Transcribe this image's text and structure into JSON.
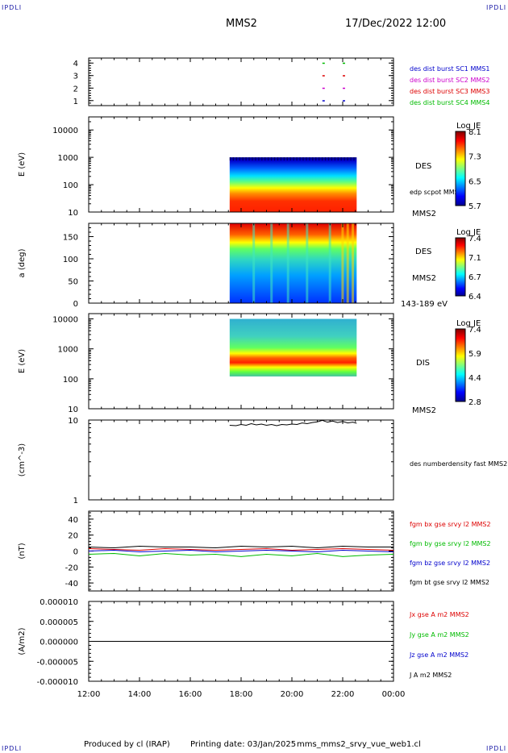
{
  "header": {
    "corner_tl": "IPDLI",
    "corner_tr": "IPDLI",
    "corner_bl": "IPDLI",
    "corner_br": "IPDLI",
    "spacecraft": "MMS2",
    "datetime": "17/Dec/2022 12:00"
  },
  "footer": {
    "producer": "Produced by cl (IRAP)",
    "print_date": "Printing date: 03/Jan/2025",
    "filename": "mms_mms2_srvy_vue_web1.cl"
  },
  "time_axis": {
    "ticks": [
      "12:00",
      "14:00",
      "16:00",
      "18:00",
      "20:00",
      "22:00",
      "00:00"
    ],
    "range_hours": [
      12,
      24
    ]
  },
  "colors": {
    "mms1": "#0000cc",
    "mms2": "#cc00cc",
    "mms3": "#dd0000",
    "mms4": "#00bb00",
    "bx": "#dd0000",
    "by": "#00bb00",
    "bz": "#0000cc",
    "bt": "#000000"
  },
  "chart_data": [
    {
      "type": "scatter",
      "panel": "burst",
      "ylim": [
        0.6,
        4.4
      ],
      "yticks": [
        "1",
        "2",
        "3",
        "4"
      ],
      "legend": [
        "des dist burst SC1 MMS1",
        "des dist burst SC2 MMS2",
        "des dist burst SC3 MMS3",
        "des dist burst SC4 MMS4"
      ],
      "series": [
        {
          "name": "des dist burst SC1 MMS1",
          "x": [
            21.2,
            22.0
          ],
          "y": [
            1,
            1
          ]
        },
        {
          "name": "des dist burst SC2 MMS2",
          "x": [
            21.2,
            22.0
          ],
          "y": [
            2,
            2
          ]
        },
        {
          "name": "des dist burst SC3 MMS3",
          "x": [
            21.2,
            22.0
          ],
          "y": [
            3,
            3
          ]
        },
        {
          "name": "des dist burst SC4 MMS4",
          "x": [
            21.2,
            22.0
          ],
          "y": [
            4,
            4
          ]
        }
      ]
    },
    {
      "type": "heatmap",
      "panel": "des-energy",
      "ylabel": "E (eV)",
      "yscale": "log",
      "ylim": [
        10,
        30000
      ],
      "yticks": [
        "10",
        "100",
        "1000",
        "10000"
      ],
      "x_extent": [
        17.55,
        22.55
      ],
      "y_extent": [
        10,
        1000
      ],
      "label": "DES",
      "label2": "edp scpot MMS2",
      "label3": "MMS2",
      "colorbar": {
        "title": "Log JE",
        "ticks": [
          "8.1",
          "7.3",
          "6.5",
          "5.7"
        ]
      }
    },
    {
      "type": "heatmap",
      "panel": "des-pitch",
      "ylabel": "a (deg)",
      "ylim": [
        0,
        180
      ],
      "yticks": [
        "0",
        "50",
        "100",
        "150"
      ],
      "x_extent": [
        17.55,
        22.55
      ],
      "y_extent": [
        0,
        180
      ],
      "label": "DES",
      "label2": "MMS2",
      "label3": "143-189 eV",
      "colorbar": {
        "title": "Log JE",
        "ticks": [
          "7.4",
          "7.1",
          "6.7",
          "6.4"
        ]
      }
    },
    {
      "type": "heatmap",
      "panel": "dis-energy",
      "ylabel": "E (eV)",
      "yscale": "log",
      "ylim": [
        10,
        15000
      ],
      "yticks": [
        "10",
        "100",
        "1000",
        "10000"
      ],
      "x_extent": [
        17.55,
        22.55
      ],
      "y_extent": [
        120,
        10000
      ],
      "label": "DIS",
      "label2": "MMS2",
      "colorbar": {
        "title": "Log JE",
        "ticks": [
          "7.4",
          "5.9",
          "4.4",
          "2.8"
        ]
      }
    },
    {
      "type": "line",
      "panel": "density",
      "ylabel": "(cm^-3)",
      "yscale": "log",
      "ylim": [
        1,
        10
      ],
      "yticks": [
        "1",
        "10"
      ],
      "legend": [
        "des numberdensity fast MMS2"
      ],
      "series": [
        {
          "name": "des numberdensity fast MMS2",
          "x": [
            17.55,
            17.8,
            18.0,
            18.2,
            18.4,
            18.6,
            18.8,
            19.0,
            19.2,
            19.4,
            19.6,
            19.8,
            20.0,
            20.2,
            20.4,
            20.6,
            20.8,
            21.0,
            21.2,
            21.4,
            21.6,
            21.8,
            22.0,
            22.2,
            22.4,
            22.55
          ],
          "y": [
            8.6,
            8.5,
            8.8,
            8.6,
            9.0,
            8.7,
            8.9,
            8.6,
            8.8,
            8.5,
            8.8,
            8.7,
            8.9,
            8.8,
            9.2,
            9.0,
            9.3,
            9.5,
            9.9,
            9.4,
            9.7,
            9.3,
            9.6,
            9.2,
            9.4,
            9.1
          ]
        }
      ]
    },
    {
      "type": "line",
      "panel": "magnetic",
      "ylabel": "(nT)",
      "ylim": [
        -50,
        50
      ],
      "yticks": [
        "-40",
        "-20",
        "0",
        "20",
        "40"
      ],
      "legend": [
        "fgm bx gse srvy l2 MMS2",
        "fgm by gse srvy l2 MMS2",
        "fgm bz gse srvy l2 MMS2",
        "fgm bt gse srvy l2 MMS2"
      ],
      "series": [
        {
          "name": "fgm bx gse srvy l2 MMS2",
          "x": [
            12,
            13,
            14,
            15,
            16,
            17,
            18,
            19,
            20,
            21,
            22,
            23,
            24
          ],
          "y": [
            3,
            2,
            1,
            3,
            2,
            1,
            2,
            3,
            1,
            2,
            3,
            2,
            1
          ]
        },
        {
          "name": "fgm by gse srvy l2 MMS2",
          "x": [
            12,
            13,
            14,
            15,
            16,
            17,
            18,
            19,
            20,
            21,
            22,
            23,
            24
          ],
          "y": [
            -4,
            -3,
            -6,
            -3,
            -5,
            -4,
            -7,
            -4,
            -6,
            -3,
            -7,
            -5,
            -4
          ]
        },
        {
          "name": "fgm bz gse srvy l2 MMS2",
          "x": [
            12,
            13,
            14,
            15,
            16,
            17,
            18,
            19,
            20,
            21,
            22,
            23,
            24
          ],
          "y": [
            0,
            1,
            -1,
            0,
            1,
            -1,
            0,
            1,
            0,
            -1,
            1,
            0,
            -1
          ]
        },
        {
          "name": "fgm bt gse srvy l2 MMS2",
          "x": [
            12,
            13,
            14,
            15,
            16,
            17,
            18,
            19,
            20,
            21,
            22,
            23,
            24
          ],
          "y": [
            5,
            4,
            6,
            5,
            5,
            4,
            6,
            5,
            6,
            4,
            6,
            5,
            5
          ]
        }
      ]
    },
    {
      "type": "line",
      "panel": "current",
      "ylabel": "(A/m2)",
      "ylim": [
        -1e-05,
        1e-05
      ],
      "yticks": [
        "-0.000010",
        "-0.000005",
        "0.000000",
        "0.000005",
        "0.000010"
      ],
      "legend": [
        "Jx gse A m2 MMS2",
        "Jy gse A m2 MMS2",
        "Jz gse A m2 MMS2",
        "J A m2 MMS2"
      ],
      "series": [
        {
          "name": "J A m2 MMS2",
          "x": [
            12,
            24
          ],
          "y": [
            0,
            0
          ]
        }
      ]
    }
  ]
}
